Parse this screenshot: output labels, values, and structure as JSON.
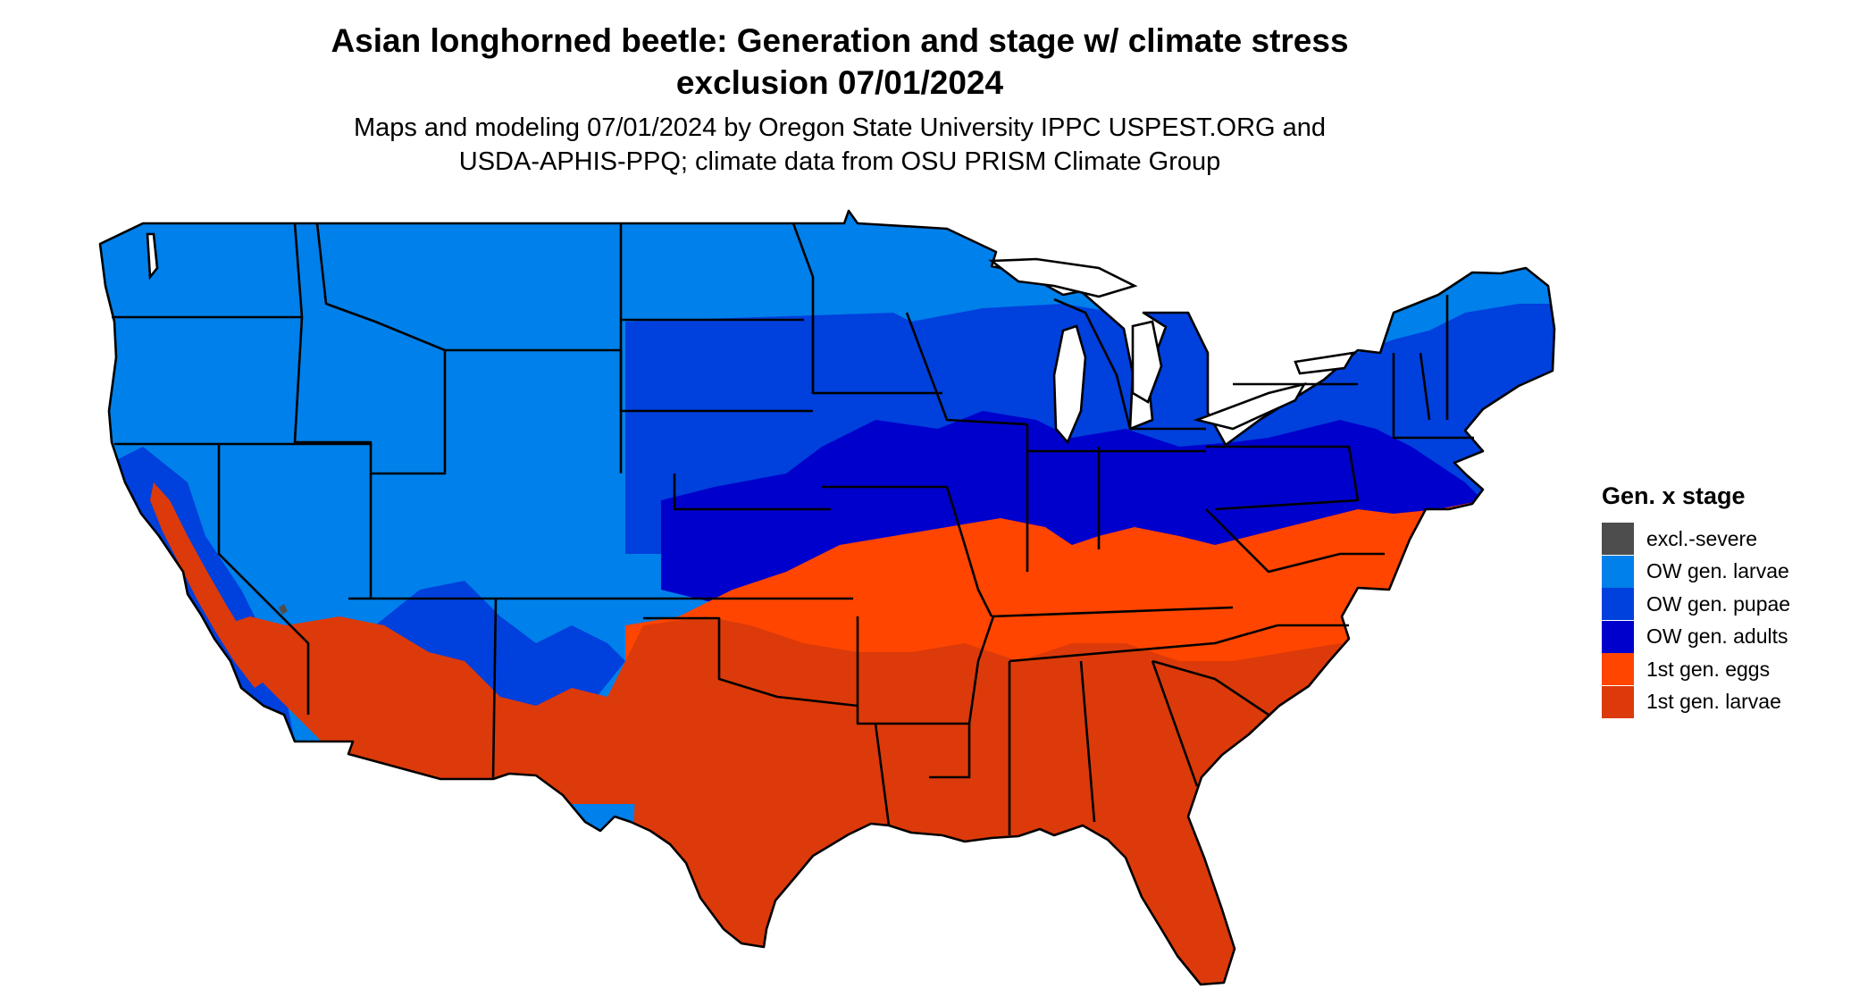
{
  "title_lines": [
    "Asian longhorned beetle: Generation and stage w/ climate stress",
    "exclusion 07/01/2024"
  ],
  "subtitle_lines": [
    "Maps and modeling 07/01/2024 by Oregon State University IPPC USPEST.ORG and",
    "USDA-APHIS-PPQ; climate data from OSU PRISM Climate Group"
  ],
  "legend": {
    "title": "Gen. x stage",
    "items": [
      {
        "label": "excl.-severe",
        "color": "#4d4d4d"
      },
      {
        "label": "OW gen. larvae",
        "color": "#0080ea"
      },
      {
        "label": "OW gen. pupae",
        "color": "#0040dd"
      },
      {
        "label": "OW gen. adults",
        "color": "#0000cc"
      },
      {
        "label": "1st gen. eggs",
        "color": "#ff4500"
      },
      {
        "label": "1st gen. larvae",
        "color": "#dc3a0a"
      }
    ]
  }
}
